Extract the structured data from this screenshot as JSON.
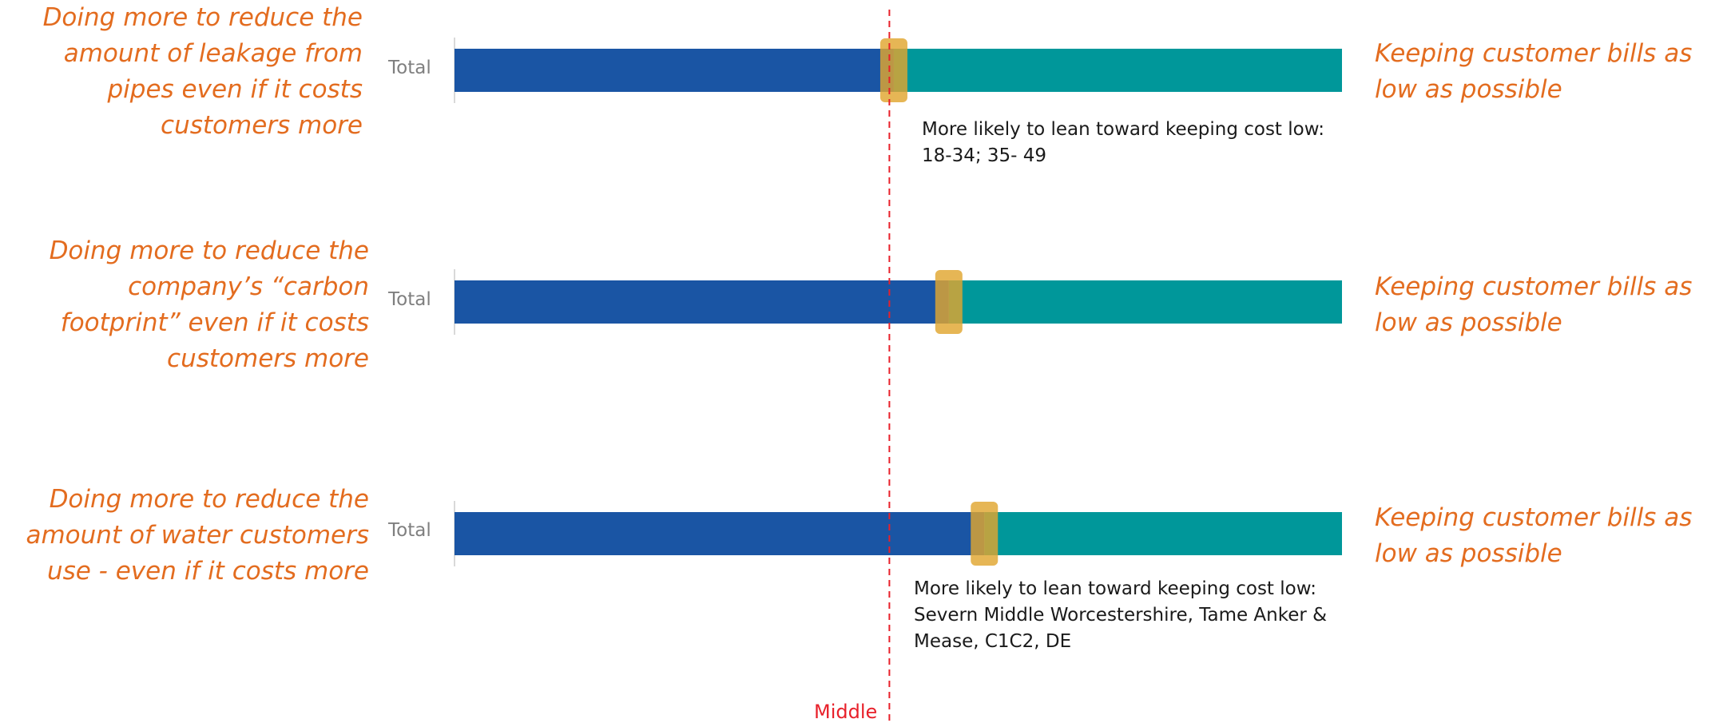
{
  "colors": {
    "prefer_left": "#1a55a4",
    "prefer_right": "#00979a",
    "marker": "#e0a630",
    "statement": "#e36c1f",
    "middle_line": "#e8202a"
  },
  "chart_data": {
    "type": "bar",
    "orientation": "horizontal",
    "stacked": true,
    "xlim": [
      0,
      1
    ],
    "midpoint": 0.49,
    "midpoint_label": "Middle",
    "rows": [
      {
        "label": "Total",
        "left_statement": "Doing more to reduce the amount of leakage from pipes even if it costs customers more",
        "right_statement": "Keeping customer bills as low as possible",
        "marker": 0.495,
        "note": [
          "More likely to lean toward keeping cost low:",
          "18-34; 35- 49"
        ]
      },
      {
        "label": "Total",
        "left_statement": "Doing more to reduce the company’s “carbon footprint” even if it costs customers more",
        "right_statement": "Keeping customer bills as low as possible",
        "marker": 0.557,
        "note": []
      },
      {
        "label": "Total",
        "left_statement": "Doing more to reduce the amount of water customers use - even if it costs more",
        "right_statement": "Keeping customer bills as low as possible",
        "marker": 0.597,
        "note": [
          "More likely to lean toward keeping cost low:",
          "Severn Middle Worcestershire, Tame Anker &",
          "Mease, C1C2, DE"
        ]
      }
    ]
  }
}
